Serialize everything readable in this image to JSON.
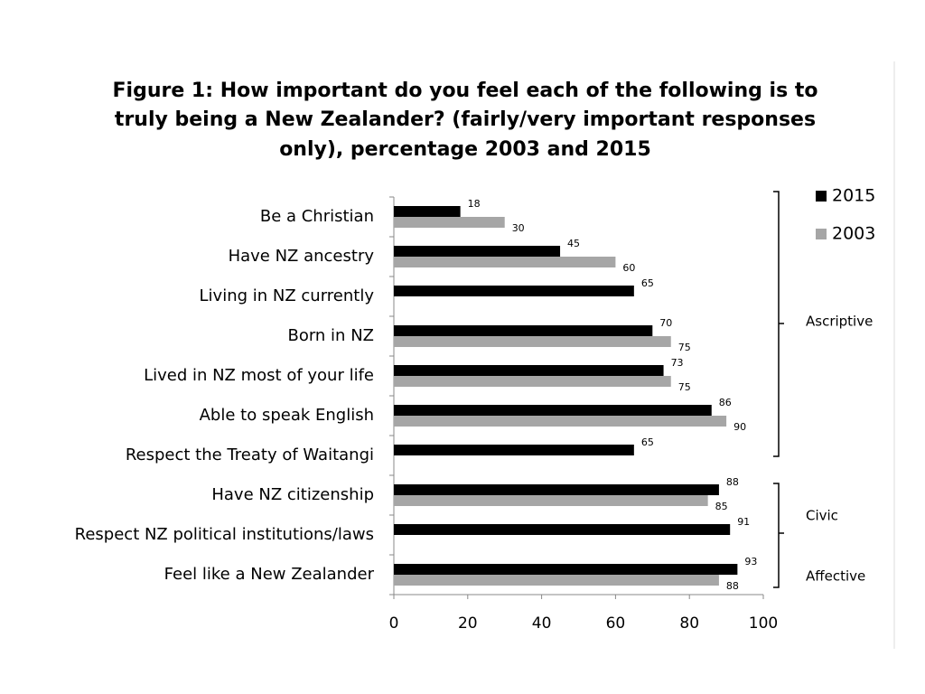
{
  "chart_data": {
    "type": "hbar",
    "title": [
      "Figure 1: How important do you feel each of the following is to",
      "truly being a New Zealander? (fairly/very important responses",
      "only), percentage 2003 and 2015"
    ],
    "categories": [
      "Be a Christian",
      "Have NZ ancestry",
      "Living in NZ currently",
      "Born in NZ",
      "Lived in NZ most of your life",
      "Able to speak English",
      "Respect the Treaty of Waitangi",
      "Have NZ citizenship",
      "Respect NZ political institutions/laws",
      "Feel like a New Zealander"
    ],
    "series": [
      {
        "name": "2015",
        "color": "#000000",
        "values": [
          18,
          45,
          65,
          70,
          73,
          86,
          65,
          88,
          91,
          93
        ]
      },
      {
        "name": "2003",
        "color": "#a6a6a6",
        "values": [
          30,
          60,
          null,
          75,
          75,
          90,
          null,
          85,
          null,
          88
        ]
      }
    ],
    "xlim": [
      0,
      100
    ],
    "xticks": [
      0,
      20,
      40,
      60,
      80,
      100
    ],
    "annotations": [
      "Ascriptive",
      "Civic",
      "Affective"
    ],
    "legend": "top-right"
  }
}
